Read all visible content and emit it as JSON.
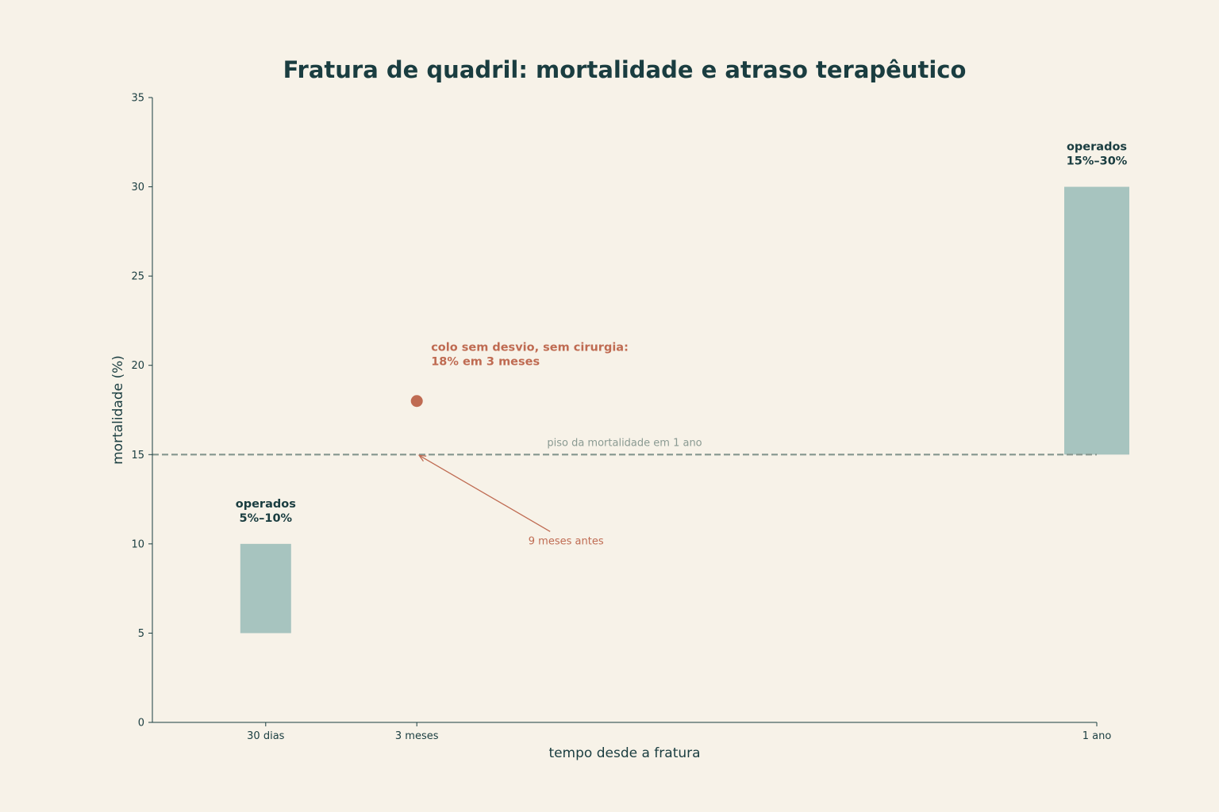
{
  "chart_data": {
    "type": "bar",
    "title": "Fratura de quadril: mortalidade e atraso terapêutico",
    "xlabel": "tempo desde a fratura",
    "ylabel": "mortalidade (%)",
    "ylim": [
      0,
      35
    ],
    "yticks": [
      0,
      5,
      10,
      15,
      20,
      25,
      30,
      35
    ],
    "xlim": [
      -0.5,
      12
    ],
    "categories": [
      "30 dias",
      "3 meses",
      "1 ano"
    ],
    "category_x": [
      1,
      3,
      12
    ],
    "grid": false,
    "ranges": [
      {
        "category": "30 dias",
        "x": 1,
        "low": 5,
        "high": 10,
        "label_line1": "operados",
        "label_line2": "5%–10%"
      },
      {
        "category": "1 ano",
        "x": 12,
        "low": 15,
        "high": 30,
        "label_line1": "operados",
        "label_line2": "15%–30%"
      }
    ],
    "point": {
      "category": "3 meses",
      "x": 3,
      "y": 18,
      "label_line1": "colo sem desvio, sem cirurgia:",
      "label_line2": "18% em 3 meses"
    },
    "reference_line": {
      "y": 15,
      "label": "piso da mortalidade em 1 ano"
    },
    "arrow_annotation": {
      "text": "9 meses antes",
      "target_x": 3,
      "target_y": 15
    },
    "colors": {
      "background": "#f7f2e8",
      "text": "#1a3d40",
      "bar": "#a7c4bf",
      "point": "#bf6b52",
      "reference": "#8a9a92"
    }
  }
}
